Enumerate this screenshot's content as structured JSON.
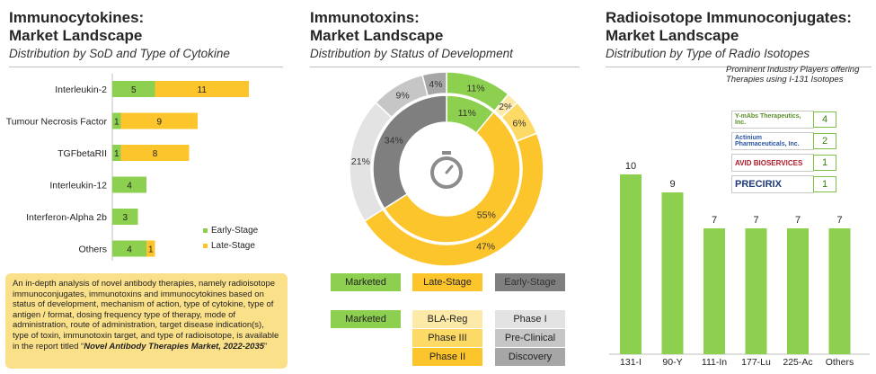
{
  "colors": {
    "green": "#8dcf4f",
    "yellow": "#fdc52c",
    "darkgray": "#7f7f7f",
    "lightgray": "#d9d9d9",
    "paleyellow": "#fde9a8",
    "note": "#fbe08a"
  },
  "panel1": {
    "title1": "Immunocytokines:",
    "title2": "Market Landscape",
    "subtitle": "Distribution by SoD and Type of Cytokine",
    "note_text": "An in-depth analysis of novel antibody therapies, namely radioisotope immunoconjugates, immunotoxins and immunocytokines based on status of development, mechanism of action, type of cytokine, type of antigen / format, dosing frequency type of therapy, mode of administration, route of administration, target disease indication(s), type of toxin, immunotoxin target, and type of radioisotope, is available in the report titled “",
    "note_report": "Novel Antibody Therapies Market, 2022-2035",
    "note_end": "”"
  },
  "panel2": {
    "title1": "Immunotoxins:",
    "title2": "Market Landscape",
    "subtitle": "Distribution by Status of Development",
    "icon": "stopwatch-icon",
    "legend_row1": [
      "Marketed",
      "Late-Stage",
      "Early-Stage"
    ],
    "legend_row2_left": "Marketed",
    "legend_mid": [
      "BLA-Reg",
      "Phase III",
      "Phase II"
    ],
    "legend_right": [
      "Phase I",
      "Pre-Clinical",
      "Discovery"
    ]
  },
  "panel3": {
    "title1": "Radioisotope Immunoconjugates:",
    "title2": "Market Landscape",
    "subtitle": "Distribution by Type of Radio Isotopes",
    "players_title": "Prominent Industry Players offering Therapies using I-131 Isotopes",
    "players": [
      {
        "name": "Y-mAbs Therapeutics, Inc.",
        "count": "4"
      },
      {
        "name": "Actinium Pharmaceuticals, Inc.",
        "count": "2"
      },
      {
        "name": "AVID BIOSERVICES",
        "count": "1"
      },
      {
        "name": "PRECIRIX",
        "count": "1"
      }
    ]
  },
  "chart_data": [
    {
      "type": "bar",
      "orientation": "horizontal",
      "stacked": true,
      "categories": [
        "Interleukin-2",
        "Tumour Necrosis Factor",
        "TGFbetaRII",
        "Interleukin-12",
        "Interferon-Alpha 2b",
        "Others"
      ],
      "series": [
        {
          "name": "Early-Stage",
          "values": [
            5,
            1,
            1,
            4,
            3,
            4
          ],
          "color": "#8dcf4f"
        },
        {
          "name": "Late-Stage",
          "values": [
            11,
            9,
            8,
            0,
            0,
            1
          ],
          "color": "#fdc52c"
        }
      ],
      "legend": "right"
    },
    {
      "type": "pie",
      "variant": "double-donut",
      "outer": {
        "labels": [
          "Marketed",
          "BLA-Reg",
          "Phase III",
          "Phase II",
          "Phase I",
          "Pre-Clinical",
          "Discovery"
        ],
        "values": [
          11,
          2,
          6,
          47,
          21,
          9,
          4
        ],
        "data_labels": [
          "11%",
          "2%",
          "6%",
          "47%",
          "21%",
          "9%",
          "4%"
        ]
      },
      "inner": {
        "labels": [
          "Marketed",
          "Late-Stage",
          "Early-Stage"
        ],
        "values": [
          11,
          55,
          34
        ],
        "data_labels": [
          "11%",
          "55%",
          "34%"
        ]
      }
    },
    {
      "type": "bar",
      "categories": [
        "131-I",
        "90-Y",
        "111-In",
        "177-Lu",
        "225-Ac",
        "Others"
      ],
      "values": [
        10,
        9,
        7,
        7,
        7,
        7
      ],
      "data_labels": [
        "10",
        "9",
        "7",
        "7",
        "7",
        "7"
      ],
      "ylim": [
        0,
        10
      ]
    }
  ]
}
